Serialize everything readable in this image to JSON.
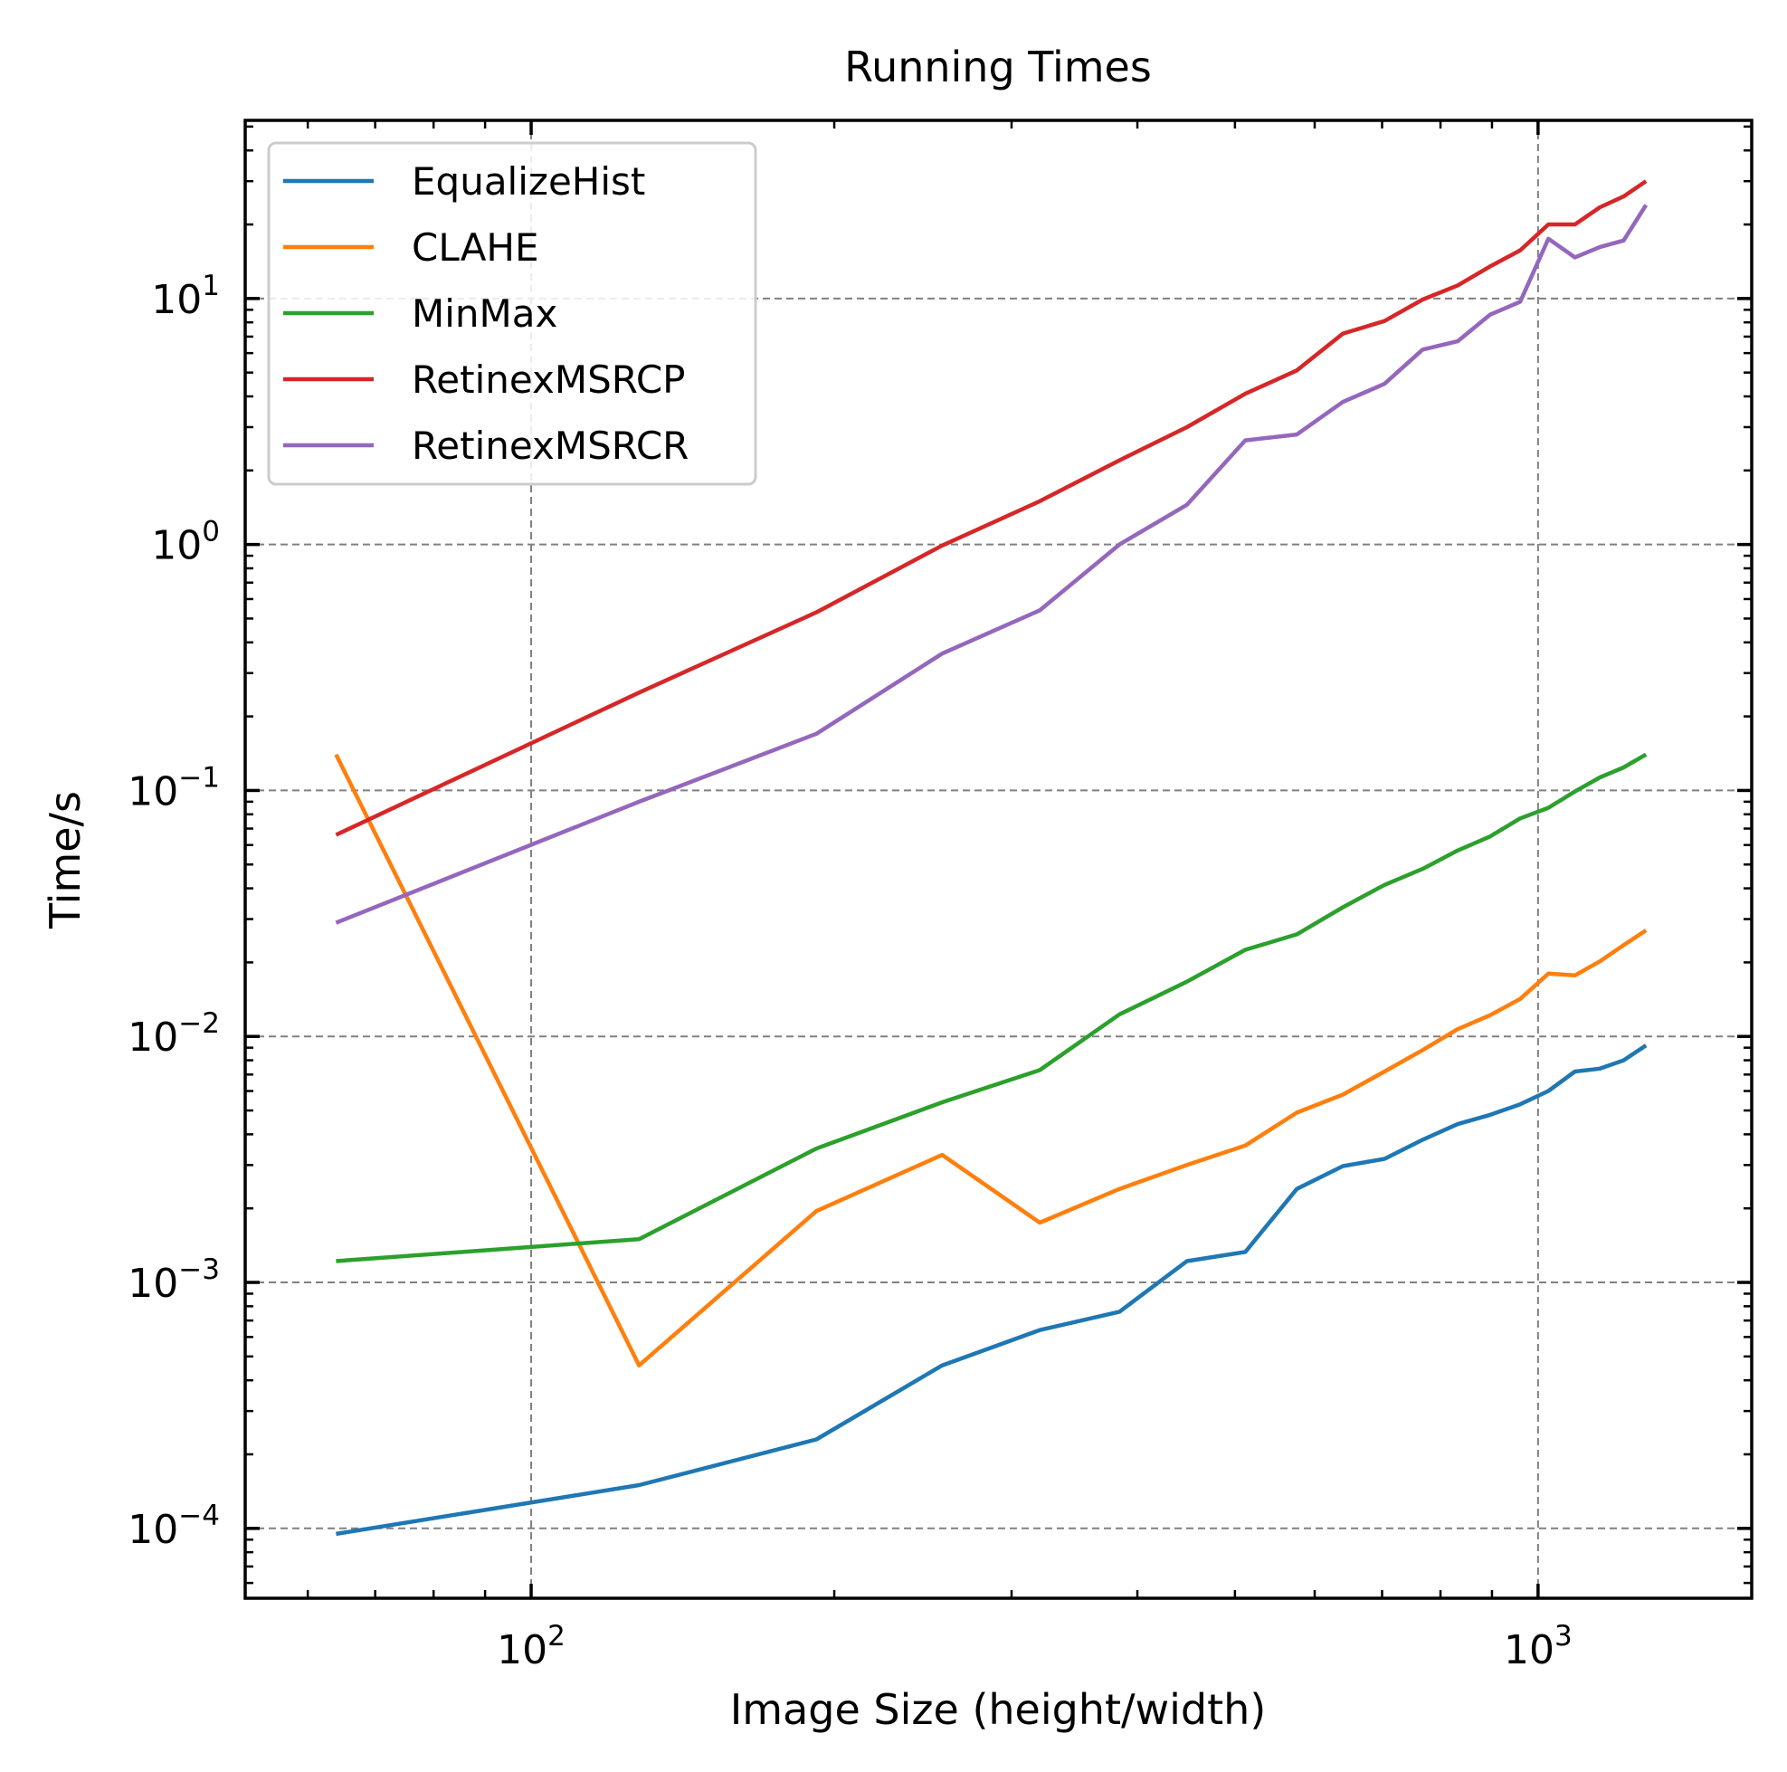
{
  "chart_data": {
    "type": "line",
    "title": "Running Times",
    "xlabel": "Image Size (height/width)",
    "ylabel": "Time/s",
    "xscale": "log",
    "yscale": "log",
    "xlim": [
      52,
      1630
    ],
    "ylim": [
      5.2e-05,
      53
    ],
    "grid": true,
    "legend_position": "top-left",
    "x_ticks": [
      {
        "value": 100,
        "base": "10",
        "exp": "2"
      },
      {
        "value": 1000,
        "base": "10",
        "exp": "3"
      }
    ],
    "y_ticks": [
      {
        "value": 0.0001,
        "base": "10",
        "exp": "−4"
      },
      {
        "value": 0.001,
        "base": "10",
        "exp": "−3"
      },
      {
        "value": 0.01,
        "base": "10",
        "exp": "−2"
      },
      {
        "value": 0.1,
        "base": "10",
        "exp": "−1"
      },
      {
        "value": 1,
        "base": "10",
        "exp": "0"
      },
      {
        "value": 10,
        "base": "10",
        "exp": "1"
      }
    ],
    "series": [
      {
        "name": "EqualizeHist",
        "color": "#1f77b4",
        "x": [
          64,
          128,
          192,
          256,
          320,
          384,
          448,
          512,
          576,
          640,
          704,
          768,
          832,
          896,
          960,
          1024,
          1088,
          1152,
          1216,
          1280
        ],
        "y": [
          9.5e-05,
          0.00015,
          0.00023,
          0.00046,
          0.00064,
          0.00076,
          0.00122,
          0.00133,
          0.0024,
          0.00297,
          0.00318,
          0.0038,
          0.0044,
          0.0048,
          0.0053,
          0.006,
          0.0072,
          0.0074,
          0.008,
          0.0092
        ]
      },
      {
        "name": "CLAHE",
        "color": "#ff7f0e",
        "x": [
          64,
          128,
          192,
          256,
          320,
          384,
          448,
          512,
          576,
          640,
          704,
          768,
          832,
          896,
          960,
          1024,
          1088,
          1152,
          1216,
          1280
        ],
        "y": [
          0.14,
          0.00046,
          0.00195,
          0.0033,
          0.00175,
          0.0024,
          0.003,
          0.0036,
          0.0049,
          0.0058,
          0.0072,
          0.0088,
          0.0107,
          0.0122,
          0.0142,
          0.018,
          0.0177,
          0.0202,
          0.0235,
          0.027
        ]
      },
      {
        "name": "MinMax",
        "color": "#2ca02c",
        "x": [
          64,
          128,
          192,
          256,
          320,
          384,
          448,
          512,
          576,
          640,
          704,
          768,
          832,
          896,
          960,
          1024,
          1088,
          1152,
          1216,
          1280
        ],
        "y": [
          0.00122,
          0.0015,
          0.0035,
          0.0054,
          0.0073,
          0.0123,
          0.0167,
          0.0225,
          0.026,
          0.0335,
          0.0413,
          0.048,
          0.057,
          0.065,
          0.077,
          0.085,
          0.099,
          0.113,
          0.124,
          0.14
        ]
      },
      {
        "name": "RetinexMSRCP",
        "color": "#d62728",
        "x": [
          64,
          128,
          192,
          256,
          320,
          384,
          448,
          512,
          576,
          640,
          704,
          768,
          832,
          896,
          960,
          1024,
          1088,
          1152,
          1216,
          1280
        ],
        "y": [
          0.066,
          0.25,
          0.53,
          0.99,
          1.5,
          2.2,
          3.0,
          4.1,
          5.1,
          7.2,
          8.1,
          9.9,
          11.3,
          13.5,
          15.7,
          20.0,
          20.0,
          23.5,
          26.0,
          30.0
        ]
      },
      {
        "name": "RetinexMSRCR",
        "color": "#9467bd",
        "x": [
          64,
          128,
          192,
          256,
          320,
          384,
          448,
          512,
          576,
          640,
          704,
          768,
          832,
          896,
          960,
          1024,
          1088,
          1152,
          1216,
          1280
        ],
        "y": [
          0.029,
          0.09,
          0.17,
          0.36,
          0.54,
          1.0,
          1.45,
          2.65,
          2.8,
          3.8,
          4.5,
          6.2,
          6.7,
          8.6,
          9.7,
          17.5,
          14.7,
          16.2,
          17.2,
          24.0
        ]
      }
    ]
  }
}
